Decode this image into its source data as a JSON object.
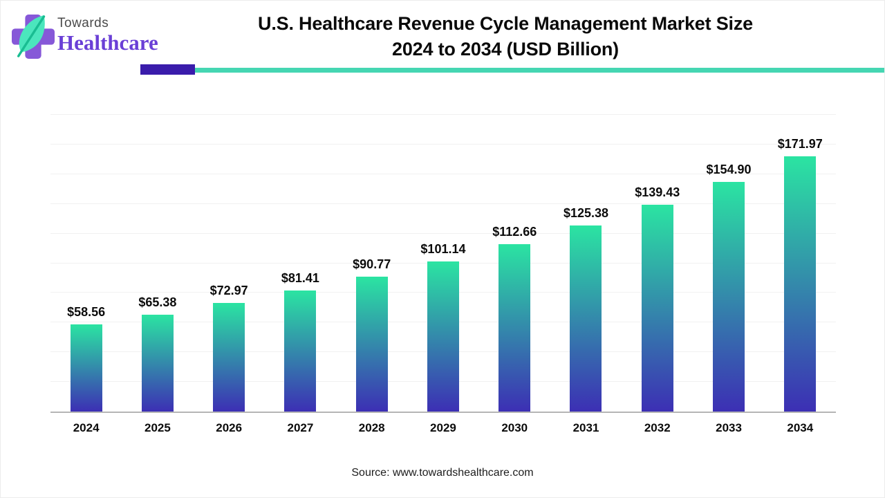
{
  "logo": {
    "brand_top": "Towards",
    "brand_bottom": "Healthcare"
  },
  "header": {
    "title_line1": "U.S. Healthcare Revenue Cycle Management Market Size",
    "title_line2": "2024 to 2034 (USD Billion)"
  },
  "chart_data": {
    "type": "bar",
    "title": "U.S. Healthcare Revenue Cycle Management Market Size 2024 to 2034 (USD Billion)",
    "categories": [
      "2024",
      "2025",
      "2026",
      "2027",
      "2028",
      "2029",
      "2030",
      "2031",
      "2032",
      "2033",
      "2034"
    ],
    "values": [
      58.56,
      65.38,
      72.97,
      81.41,
      90.77,
      101.14,
      112.66,
      125.38,
      139.43,
      154.9,
      171.97
    ],
    "value_labels": [
      "$58.56",
      "$65.38",
      "$72.97",
      "$81.41",
      "$90.77",
      "$101.14",
      "$112.66",
      "$125.38",
      "$139.43",
      "$154.90",
      "$171.97"
    ],
    "xlabel": "",
    "ylabel": "",
    "ylim": [
      0,
      200
    ],
    "gridline_step": 20,
    "grid": true,
    "legend": "none"
  },
  "footer": {
    "source": "Source: www.towardshealthcare.com"
  },
  "colors": {
    "bar_gradient_top": "#2be4a2",
    "bar_gradient_bottom": "#3c2fb4",
    "accent_purple": "#3a1cab",
    "accent_teal": "#45d6b2",
    "axis_line": "#b5b5b5",
    "gridline": "#f1f1f1",
    "brand_purple": "#6a3fd6",
    "brand_gray": "#4a4a4a"
  }
}
